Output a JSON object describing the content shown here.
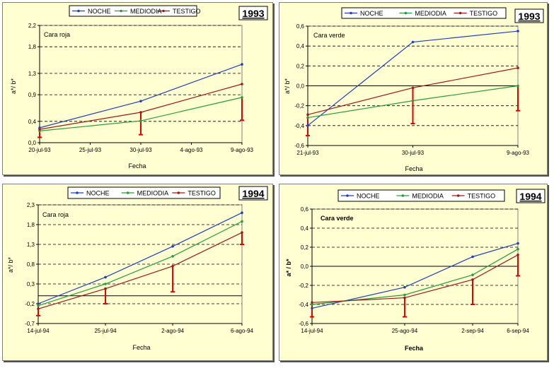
{
  "legend": [
    "NOCHE",
    "MEDIODIA",
    "TESTIGO"
  ],
  "colors": {
    "noche": "#1f3fbf",
    "mediodia": "#2a9a3a",
    "testigo": "#a01818",
    "errbar": "#e00000",
    "panel_bg": "#ffffd2"
  },
  "chart_data": [
    {
      "type": "line",
      "year_label": "1993",
      "annotation": "Cara roja",
      "xlabel": "Fecha",
      "ylabel": "a*/ b*",
      "x_ticks": [
        "20-jul-93",
        "25-jul-93",
        "30-jul-93",
        "4-ago-93",
        "9-ago-93"
      ],
      "y_ticks": [
        "0,0",
        "0,4",
        "0,9",
        "1,3",
        "1,8",
        "2,2"
      ],
      "ylim": [
        0.0,
        2.2
      ],
      "x": [
        "20-jul-93",
        "30-jul-93",
        "9-ago-93"
      ],
      "grid": "horizontal dashed",
      "series": [
        {
          "name": "NOCHE",
          "values": [
            0.28,
            0.78,
            1.47
          ]
        },
        {
          "name": "MEDIODIA",
          "values": [
            0.22,
            0.41,
            0.85
          ]
        },
        {
          "name": "TESTIGO",
          "values": [
            0.25,
            0.57,
            1.1
          ]
        }
      ],
      "error_bars": [
        [
          0.1,
          0.25
        ],
        [
          0.15,
          0.57
        ],
        [
          0.42,
          0.85
        ]
      ]
    },
    {
      "type": "line",
      "year_label": "1993",
      "annotation": "Cara verde",
      "xlabel": "Fecha",
      "ylabel": "a*/ b*",
      "x_ticks": [
        "21-jul-93",
        "30-jul-93",
        "9-ago-93"
      ],
      "y_ticks": [
        "-0,6",
        "-0,4",
        "-0,2",
        "0,0",
        "0,2",
        "0,4",
        "0,6"
      ],
      "ylim": [
        -0.6,
        0.6
      ],
      "x": [
        "21-jul-93",
        "30-jul-93",
        "9-ago-93"
      ],
      "grid": "horizontal dashed",
      "series": [
        {
          "name": "NOCHE",
          "values": [
            -0.4,
            0.44,
            0.55
          ]
        },
        {
          "name": "MEDIODIA",
          "values": [
            -0.32,
            -0.15,
            0.0
          ]
        },
        {
          "name": "TESTIGO",
          "values": [
            -0.29,
            -0.02,
            0.18
          ]
        }
      ],
      "error_bars": [
        [
          -0.5,
          -0.32
        ],
        [
          -0.38,
          -0.02
        ],
        [
          -0.25,
          0.0
        ]
      ]
    },
    {
      "type": "line",
      "year_label": "1994",
      "annotation": "Cara roja",
      "xlabel": "Fecha",
      "ylabel": "a*/ b*",
      "x_ticks": [
        "14-jul-94",
        "25-jul-94",
        "2-ago-94",
        "6-ago-94"
      ],
      "y_ticks": [
        "-0,7",
        "-0,2",
        "0,3",
        "0,8",
        "1,3",
        "1,8",
        "2,3"
      ],
      "ylim": [
        -0.7,
        2.3
      ],
      "x": [
        "14-jul-94",
        "25-jul-94",
        "2-ago-94",
        "6-ago-94"
      ],
      "grid": "horizontal dashed",
      "series": [
        {
          "name": "NOCHE",
          "values": [
            -0.2,
            0.47,
            1.25,
            2.1
          ]
        },
        {
          "name": "MEDIODIA",
          "values": [
            -0.25,
            0.3,
            1.0,
            1.88
          ]
        },
        {
          "name": "TESTIGO",
          "values": [
            -0.33,
            0.18,
            0.75,
            1.6
          ]
        }
      ],
      "error_bars": [
        [
          -0.5,
          -0.2
        ],
        [
          -0.2,
          0.18
        ],
        [
          0.1,
          0.75
        ],
        [
          1.3,
          1.6
        ]
      ]
    },
    {
      "type": "line",
      "year_label": "1994",
      "annotation": "Cara verde",
      "xlabel": "Fecha",
      "ylabel": "a* / b*",
      "x_ticks": [
        "14-jul-94",
        "25-ago-94",
        "2-sep-94",
        "6-sep-94"
      ],
      "y_ticks": [
        "-0,6",
        "-0,4",
        "-0,2",
        "0,0",
        "0,2",
        "0,4",
        "0,6"
      ],
      "ylim": [
        -0.6,
        0.6
      ],
      "x": [
        "14-jul-94",
        "25-ago-94",
        "2-sep-94",
        "6-sep-94"
      ],
      "grid": "horizontal dashed",
      "series": [
        {
          "name": "NOCHE",
          "values": [
            -0.44,
            -0.22,
            0.1,
            0.24
          ]
        },
        {
          "name": "MEDIODIA",
          "values": [
            -0.4,
            -0.3,
            -0.09,
            0.18
          ]
        },
        {
          "name": "TESTIGO",
          "values": [
            -0.38,
            -0.33,
            -0.14,
            0.12
          ]
        }
      ],
      "error_bars": [
        [
          -0.53,
          -0.38
        ],
        [
          -0.53,
          -0.33
        ],
        [
          -0.4,
          -0.14
        ],
        [
          -0.1,
          0.12
        ]
      ]
    }
  ]
}
